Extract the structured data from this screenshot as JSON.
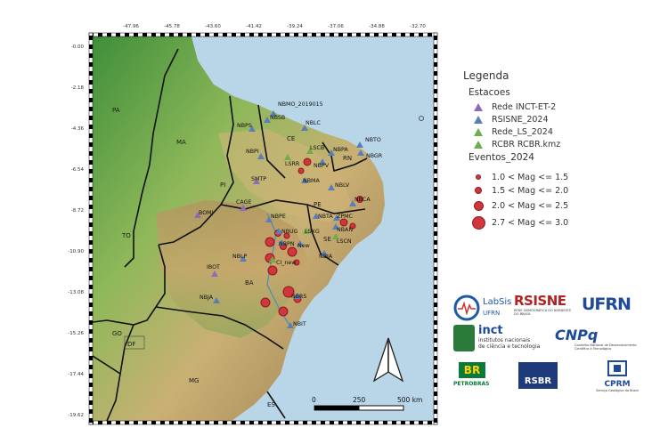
{
  "map": {
    "lon_ticks": [
      "-47.96",
      "-45.78",
      "-43.60",
      "-41.42",
      "-39.24",
      "-37.06",
      "-34.88",
      "-32.70"
    ],
    "lat_ticks": [
      "-0.00",
      "-2.18",
      "-4.36",
      "-6.54",
      "-8.72",
      "-10.90",
      "-13.08",
      "-15.26",
      "-17.44",
      "-19.62"
    ],
    "states": [
      "PA",
      "MA",
      "PI",
      "CE",
      "RN",
      "PE",
      "TO",
      "BA",
      "SE",
      "GO",
      "DF",
      "MG",
      "ES"
    ],
    "stations": [
      {
        "code": "NBMO_2019015",
        "color": "#5a7fb8"
      },
      {
        "code": "NBSB",
        "color": "#5a7fb8"
      },
      {
        "code": "NBLC",
        "color": "#5a7fb8"
      },
      {
        "code": "NBPS",
        "color": "#5a7fb8"
      },
      {
        "code": "NBTO",
        "color": "#5a7fb8"
      },
      {
        "code": "LSCB",
        "color": "#6fae4c"
      },
      {
        "code": "NBPA",
        "color": "#5a7fb8"
      },
      {
        "code": "LSRR",
        "color": "#6fae4c"
      },
      {
        "code": "NBPV",
        "color": "#5a7fb8"
      },
      {
        "code": "NBGR",
        "color": "#5a7fb8"
      },
      {
        "code": "NBPI",
        "color": "#5a7fb8"
      },
      {
        "code": "NBMA",
        "color": "#5a7fb8"
      },
      {
        "code": "SMTP",
        "color": "#8e6bb8"
      },
      {
        "code": "NBLV",
        "color": "#5a7fb8"
      },
      {
        "code": "CAGE",
        "color": "#8e6bb8"
      },
      {
        "code": "NBCA",
        "color": "#5a7fb8"
      },
      {
        "code": "BOMJ",
        "color": "#8e6bb8"
      },
      {
        "code": "NBPE",
        "color": "#5a7fb8"
      },
      {
        "code": "NBTA",
        "color": "#5a7fb8"
      },
      {
        "code": "ZPMC",
        "color": "#5a7fb8"
      },
      {
        "code": "NBUG",
        "color": "#5a7fb8"
      },
      {
        "code": "LSXG",
        "color": "#6fae4c"
      },
      {
        "code": "NBAN",
        "color": "#5a7fb8"
      },
      {
        "code": "NBPN",
        "color": "#5a7fb8"
      },
      {
        "code": "New",
        "color": "#5a7fb8"
      },
      {
        "code": "LSCN",
        "color": "#6fae4c"
      },
      {
        "code": "NBLP",
        "color": "#5a7fb8"
      },
      {
        "code": "CI_new",
        "color": "#6fae4c"
      },
      {
        "code": "NBIA",
        "color": "#5a7fb8"
      },
      {
        "code": "IBOT",
        "color": "#8e6bb8"
      },
      {
        "code": "NBJA",
        "color": "#5a7fb8"
      },
      {
        "code": "NBRS",
        "color": "#5a7fb8"
      },
      {
        "code": "NBIT",
        "color": "#5a7fb8"
      }
    ],
    "scale_labels": [
      "0",
      "250",
      "500 km"
    ]
  },
  "legend": {
    "title": "Legenda",
    "stations_title": "Estacoes",
    "stations": [
      {
        "label": "Rede INCT-ET-2",
        "color": "#8e6bb8"
      },
      {
        "label": "RSISNE_2024",
        "color": "#5a7fb8"
      },
      {
        "label": "Rede_LS_2024",
        "color": "#6fae4c"
      },
      {
        "label": "RCBR RCBR.kmz",
        "color": "#6fae4c"
      }
    ],
    "events_title": "Eventos_2024",
    "events": [
      {
        "label": "1.0 < Mag <= 1.5",
        "size": 1
      },
      {
        "label": "1.5 < Mag <= 2.0",
        "size": 2
      },
      {
        "label": "2.0 < Mag <= 2.5",
        "size": 3
      },
      {
        "label": "2.7 < Mag <= 3.0",
        "size": 4
      }
    ],
    "event_color": "#d0363b"
  },
  "logos": {
    "labsis": "LabSis",
    "labsis_sub": "UFRN",
    "rsisne": "RSISNE",
    "rsisne_sub": "REDE SISMOGRÁFICA DO NORDESTE DO BRASIL",
    "ufrn": "UFRN",
    "inct": "inct",
    "inct_sub1": "institutos nacionais",
    "inct_sub2": "de ciência e tecnologia",
    "cnpq": "CNPq",
    "cnpq_sub": "Conselho Nacional de Desenvolvimento Científico e Tecnológico",
    "br": "BR",
    "petrobras": "PETROBRAS",
    "rsbr": "RSBR",
    "cprm": "CPRM",
    "cprm_sub": "Serviço Geológico do Brasil"
  }
}
